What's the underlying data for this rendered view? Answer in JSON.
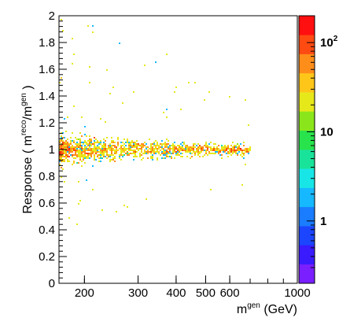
{
  "chart_data": {
    "type": "heatmap",
    "xlabel": "m^{gen} (GeV)",
    "xlabel_parts": {
      "base": "m",
      "sup": "gen",
      "tail": " (GeV)"
    },
    "ylabel": "Response ( m^{reco}/m^{gen} )",
    "ylabel_parts": {
      "prefix": "Response ( m",
      "sup1": "reco",
      "mid": "/m",
      "sup2": "gen",
      "suffix": " )"
    },
    "x_scale": "log",
    "xlim": [
      165,
      1000
    ],
    "ylim": [
      0,
      2
    ],
    "x_ticks": [
      {
        "v": 200,
        "label": "200"
      },
      {
        "v": 300,
        "label": "300"
      },
      {
        "v": 400,
        "label": "400"
      },
      {
        "v": 500,
        "label": "500"
      },
      {
        "v": 600,
        "label": "600"
      },
      {
        "v": 1000,
        "label": "1000"
      }
    ],
    "y_ticks": [
      {
        "v": 0,
        "label": "0"
      },
      {
        "v": 0.2,
        "label": "0.2"
      },
      {
        "v": 0.4,
        "label": "0.4"
      },
      {
        "v": 0.6,
        "label": "0.6"
      },
      {
        "v": 0.8,
        "label": "0.8"
      },
      {
        "v": 1,
        "label": "1"
      },
      {
        "v": 1.2,
        "label": "1.2"
      },
      {
        "v": 1.4,
        "label": "1.4"
      },
      {
        "v": 1.6,
        "label": "1.6"
      },
      {
        "v": 1.8,
        "label": "1.8"
      },
      {
        "v": 2,
        "label": "2"
      }
    ],
    "colorbar": {
      "scale": "log",
      "range": [
        0.2,
        200
      ],
      "labels": [
        {
          "v": 1,
          "label": "1"
        },
        {
          "v": 10,
          "label": "10"
        },
        {
          "v": 100,
          "label": "10",
          "sup": "2"
        }
      ]
    },
    "distribution": {
      "peak_response": 1.0,
      "peak_counts": 150,
      "outlier_max_x": 700,
      "core_end_x": 650
    }
  }
}
